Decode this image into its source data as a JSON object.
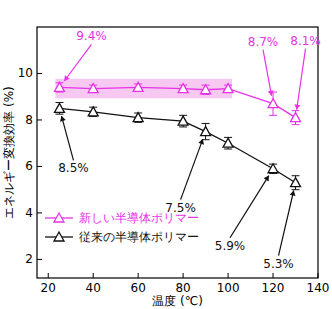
{
  "chart_data": {
    "type": "line",
    "x_label": "温度 (℃)",
    "y_label": "エネルギー変換効率 (%)",
    "x": [
      25,
      40,
      60,
      80,
      90,
      100,
      120,
      130
    ],
    "xlim": [
      15,
      140
    ],
    "xticks": [
      20,
      40,
      60,
      80,
      100,
      120,
      140
    ],
    "ylim": [
      1.2,
      12
    ],
    "yticks": [
      2,
      4,
      6,
      8,
      10
    ],
    "grid": false,
    "legend": "lower left",
    "marker": "triangle",
    "series": [
      {
        "name": "新しい半導体ポリマー",
        "color": "#e633e6",
        "values": [
          9.4,
          9.35,
          9.4,
          9.35,
          9.3,
          9.35,
          8.7,
          8.1
        ],
        "errors": [
          0.2,
          0.15,
          0.15,
          0.15,
          0.2,
          0.15,
          0.5,
          0.3
        ],
        "annotations": [
          {
            "text": "9.4%",
            "x": 25,
            "y": 9.4
          },
          {
            "text": "8.7%",
            "x": 120,
            "y": 8.7
          },
          {
            "text": "8.1%",
            "x": 130,
            "y": 8.1
          }
        ]
      },
      {
        "name": "従来の半導体ポリマー",
        "color": "#111111",
        "values": [
          8.5,
          8.35,
          8.1,
          7.95,
          7.5,
          7.0,
          5.9,
          5.3
        ],
        "errors": [
          0.25,
          0.2,
          0.2,
          0.25,
          0.35,
          0.25,
          0.2,
          0.3
        ],
        "annotations": [
          {
            "text": "8.5%",
            "x": 25,
            "y": 8.5
          },
          {
            "text": "7.5%",
            "x": 90,
            "y": 7.5
          },
          {
            "text": "5.9%",
            "x": 120,
            "y": 5.9
          },
          {
            "text": "5.3%",
            "x": 130,
            "y": 5.3
          }
        ]
      }
    ]
  }
}
